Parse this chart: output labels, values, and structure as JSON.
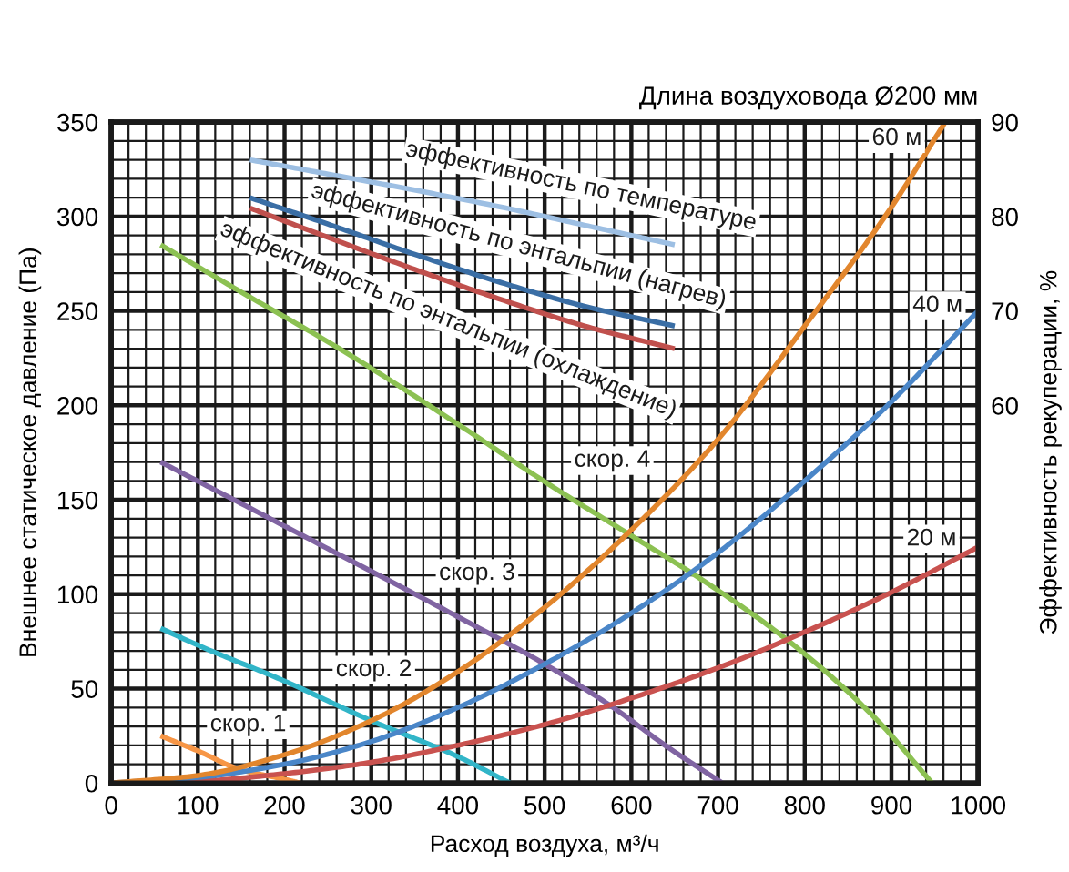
{
  "chart_data": {
    "type": "line",
    "subtitle": "Длина воздуховода Ø200 мм",
    "xlabel": "Расход воздуха, м³/ч",
    "ylabel": "Внешнее статическое давление (Па)",
    "y2label": "Эффективность рекуперации, %",
    "xlim": [
      0,
      1000
    ],
    "xticks": [
      0,
      100,
      200,
      300,
      400,
      500,
      600,
      700,
      800,
      900,
      1000
    ],
    "ylim": [
      0,
      350
    ],
    "yticks": [
      0,
      50,
      100,
      150,
      200,
      250,
      300,
      350
    ],
    "y2lim": [
      20,
      90
    ],
    "y2ticks": [
      60,
      70,
      80,
      90
    ],
    "grid": true,
    "series": [
      {
        "name": "эффективность по температуре",
        "axis": "y2",
        "color": "#9dbfe3",
        "x": [
          160,
          250,
          350,
          450,
          550,
          650
        ],
        "values": [
          86,
          84.5,
          82.8,
          81,
          79,
          77
        ]
      },
      {
        "name": "эффективность по энтальпии (нагрев)",
        "axis": "y2",
        "color": "#3a6ea5",
        "x": [
          160,
          250,
          350,
          450,
          550,
          650
        ],
        "values": [
          82,
          79.2,
          76,
          73,
          70.4,
          68.4
        ]
      },
      {
        "name": "эффективность по энтальпии (охлаждение)",
        "axis": "y2",
        "color": "#c0504d",
        "x": [
          160,
          250,
          350,
          450,
          550,
          650
        ],
        "values": [
          80.9,
          77.8,
          74.4,
          71.2,
          68.3,
          66
        ]
      },
      {
        "name": "скор. 1",
        "color": "#f79646",
        "x": [
          57,
          100,
          150,
          200,
          218
        ],
        "values": [
          25,
          17,
          7,
          2,
          0
        ]
      },
      {
        "name": "скор. 2",
        "color": "#31b5c8",
        "x": [
          57,
          100,
          200,
          300,
          400,
          460
        ],
        "values": [
          82,
          73,
          54,
          33,
          14,
          0
        ]
      },
      {
        "name": "скор. 3",
        "color": "#8064a2",
        "x": [
          57,
          150,
          267,
          400,
          500,
          579,
          642,
          705
        ],
        "values": [
          170,
          148,
          120,
          88,
          63,
          40,
          19,
          0
        ]
      },
      {
        "name": "скор. 4",
        "color": "#8cc152",
        "x": [
          57,
          150,
          267,
          400,
          502,
          600,
          677,
          782,
          880,
          947
        ],
        "values": [
          285,
          260,
          229,
          190,
          159,
          131,
          109,
          75,
          35,
          0
        ]
      },
      {
        "name": "20 м",
        "color": "#c9524f",
        "x": [
          0,
          100,
          200,
          300,
          400,
          500,
          600,
          700,
          800,
          900,
          1000
        ],
        "values": [
          0,
          1,
          5,
          11,
          20,
          31,
          45,
          61,
          80,
          101,
          125
        ]
      },
      {
        "name": "40 м",
        "color": "#4a86c8",
        "x": [
          0,
          100,
          200,
          300,
          400,
          500,
          600,
          700,
          800,
          900,
          1000
        ],
        "values": [
          0,
          3,
          10,
          22,
          40,
          63,
          90,
          122,
          160,
          202,
          250
        ]
      },
      {
        "name": "60 м",
        "color": "#e2862d",
        "x": [
          0,
          100,
          200,
          300,
          400,
          500,
          600,
          700,
          800,
          900,
          962
        ],
        "values": [
          0,
          4,
          15,
          33,
          59,
          93,
          134,
          182,
          242,
          305,
          350
        ]
      }
    ]
  }
}
